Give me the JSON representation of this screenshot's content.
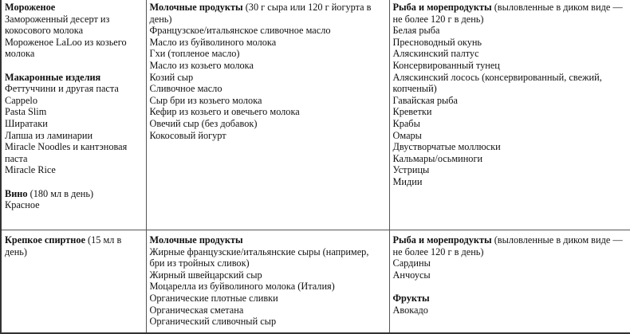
{
  "rows": [
    [
      [
        {
          "heading": "Мороженое",
          "note": "",
          "items": [
            "Замороженный десерт из кокосового молока",
            "Мороженое LaLoo из козьего молока"
          ]
        },
        {
          "heading": "Макаронные изделия",
          "note": "",
          "items": [
            "Феттуччини и другая паста",
            "Cappelo",
            "Pasta Slim",
            "Ширатаки",
            "Лапша из ламинарии",
            "Miracle Noodles и кантэновая паста",
            "Miracle Rice"
          ]
        },
        {
          "heading": "Вино",
          "note": " (180 мл в день)",
          "items": [
            "Красное"
          ]
        }
      ],
      [
        {
          "heading": "Молочные продукты",
          "note": " (30 г сыра или 120 г йогурта в день)",
          "items": [
            "Французское/итальянское сливочное масло",
            "Масло из буйволиного молока",
            "Гхи (топленое масло)",
            "Масло из козьего молока",
            "Козий сыр",
            "Сливочное масло",
            "Сыр бри из козьего молока",
            "Кефир из козьего и овечьего молока",
            "Овечий сыр (без добавок)",
            "Кокосовый йогурт"
          ]
        }
      ],
      [
        {
          "heading": "Рыба и морепродукты",
          "note": " (выловленные в диком виде — не более 120 г в день)",
          "items": [
            "Белая рыба",
            "Пресноводный окунь",
            "Аляскинский палтус",
            "Консервированный тунец",
            "Аляскинский лосось (консервированный, свежий, копченый)",
            "Гавайская рыба",
            "Креветки",
            "Крабы",
            "Омары",
            "Двустворчатые моллюски",
            "Кальмары/осьминоги",
            "Устрицы",
            "Мидии"
          ]
        }
      ]
    ],
    [
      [
        {
          "heading": "Крепкое спиртное",
          "note": " (15 мл в день)",
          "items": []
        }
      ],
      [
        {
          "heading": "Молочные продукты",
          "note": "",
          "items": [
            "Жирные французские/итальянские сыры (например, бри из тройных сливок)",
            "Жирный швейцарский сыр",
            "Моцарелла из буйволиного молока (Италия)",
            "Органические плотные сливки",
            "Органическая сметана",
            "Органический сливочный сыр"
          ]
        }
      ],
      [
        {
          "heading": "Рыба и морепродукты",
          "note": " (выловленные в диком виде — не более 120 г в день)",
          "items": [
            "Сардины",
            "Анчоусы"
          ]
        },
        {
          "heading": "Фрукты",
          "note": "",
          "items": [
            "Авокадо"
          ]
        }
      ]
    ]
  ]
}
